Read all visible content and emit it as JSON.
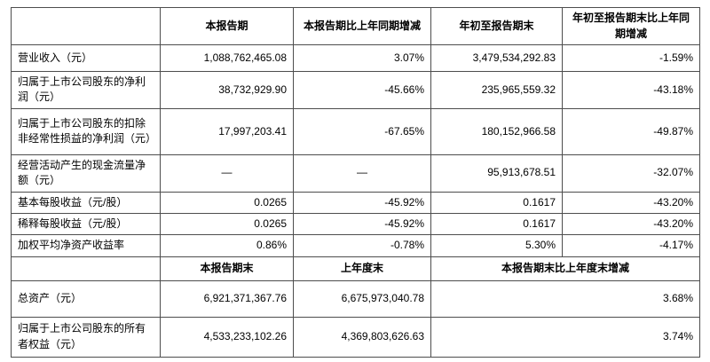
{
  "section1": {
    "col_headers": {
      "h1": "本报告期",
      "h2": "本报告期比上年同期增减",
      "h3": "年初至报告期末",
      "h4": "年初至报告期末比上年同期增减"
    },
    "rows": [
      {
        "label": "营业收入（元）",
        "v1": "1,088,762,465.08",
        "v2": "3.07%",
        "v3": "3,479,534,292.83",
        "v4": "-1.59%"
      },
      {
        "label": "归属于上市公司股东的净利润（元）",
        "v1": "38,732,929.90",
        "v2": "-45.66%",
        "v3": "235,965,559.32",
        "v4": "-43.18%"
      },
      {
        "label": "归属于上市公司股东的扣除非经常性损益的净利润（元）",
        "v1": "17,997,203.41",
        "v2": "-67.65%",
        "v3": "180,152,966.58",
        "v4": "-49.87%"
      },
      {
        "label": "经营活动产生的现金流量净额（元）",
        "v1": "—",
        "v2": "—",
        "v3": "95,913,678.51",
        "v4": "-32.07%"
      },
      {
        "label": "基本每股收益（元/股）",
        "v1": "0.0265",
        "v2": "-45.92%",
        "v3": "0.1617",
        "v4": "-43.20%"
      },
      {
        "label": "稀释每股收益（元/股）",
        "v1": "0.0265",
        "v2": "-45.92%",
        "v3": "0.1617",
        "v4": "-43.20%"
      },
      {
        "label": "加权平均净资产收益率",
        "v1": "0.86%",
        "v2": "-0.78%",
        "v3": "5.30%",
        "v4": "-4.17%"
      }
    ]
  },
  "section2": {
    "col_headers": {
      "h1": "本报告期末",
      "h2": "上年度末",
      "h3": "本报告期末比上年度末增减"
    },
    "rows": [
      {
        "label": "总资产（元）",
        "v1": "6,921,371,367.76",
        "v2": "6,675,973,040.78",
        "v3": "3.68%"
      },
      {
        "label": "归属于上市公司股东的所有者权益（元）",
        "v1": "4,533,233,102.26",
        "v2": "4,369,803,626.63",
        "v3": "3.74%"
      }
    ]
  }
}
